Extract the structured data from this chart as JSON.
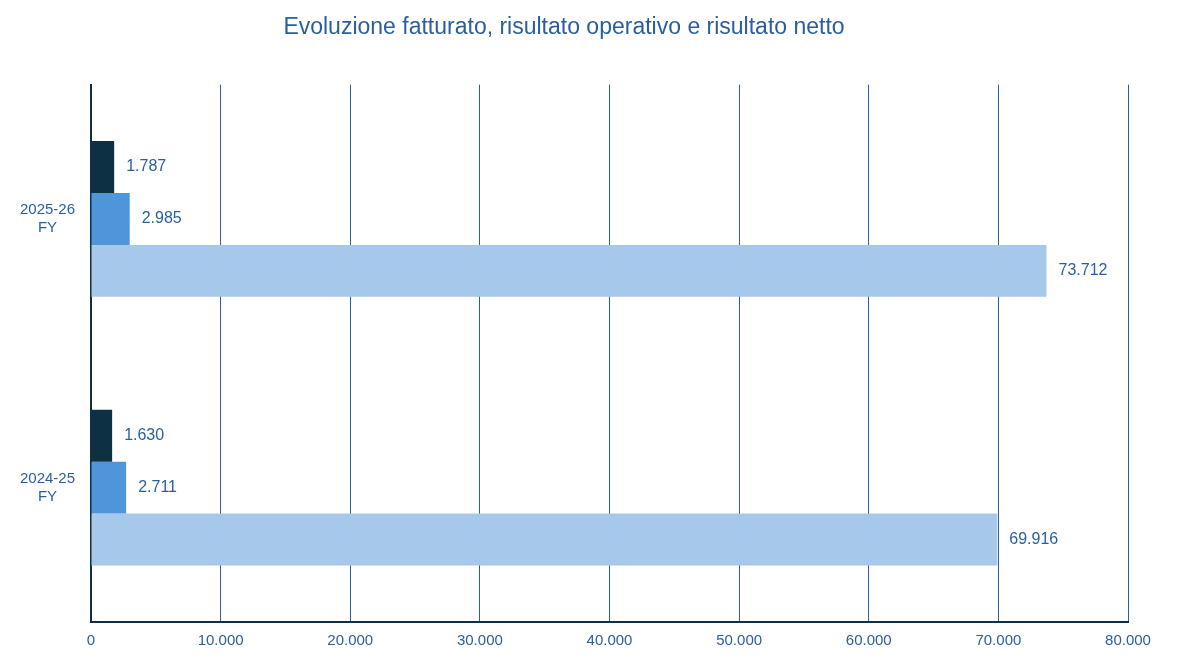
{
  "chart_data": {
    "type": "bar",
    "orientation": "horizontal",
    "title": "Evoluzione fatturato, risultato operativo e risultato netto",
    "categories": [
      "2025-26 FY",
      "2024-25 FY"
    ],
    "series": [
      {
        "color": "#0e3044",
        "values": [
          1787,
          1630
        ],
        "value_labels": [
          "1.787",
          "1.630"
        ]
      },
      {
        "color": "#4e95d9",
        "values": [
          2985,
          2711
        ],
        "value_labels": [
          "2.985",
          "2.711"
        ]
      },
      {
        "color": "#a6c9eb",
        "values": [
          73712,
          69916
        ],
        "value_labels": [
          "73.712",
          "69.916"
        ]
      }
    ],
    "xlim": [
      0,
      80000
    ],
    "xticks": [
      0,
      {
        "value": 10000,
        "label": "10.000"
      },
      {
        "value": 20000,
        "label": "20.000"
      },
      {
        "value": 30000,
        "label": "30.000"
      },
      {
        "value": 40000,
        "label": "40.000"
      },
      {
        "value": 50000,
        "label": "50.000"
      },
      {
        "value": 60000,
        "label": "60.000"
      },
      {
        "value": 70000,
        "label": "70.000"
      },
      {
        "value": 80000,
        "label": "80.000"
      }
    ],
    "grid": "x",
    "legend": false
  }
}
